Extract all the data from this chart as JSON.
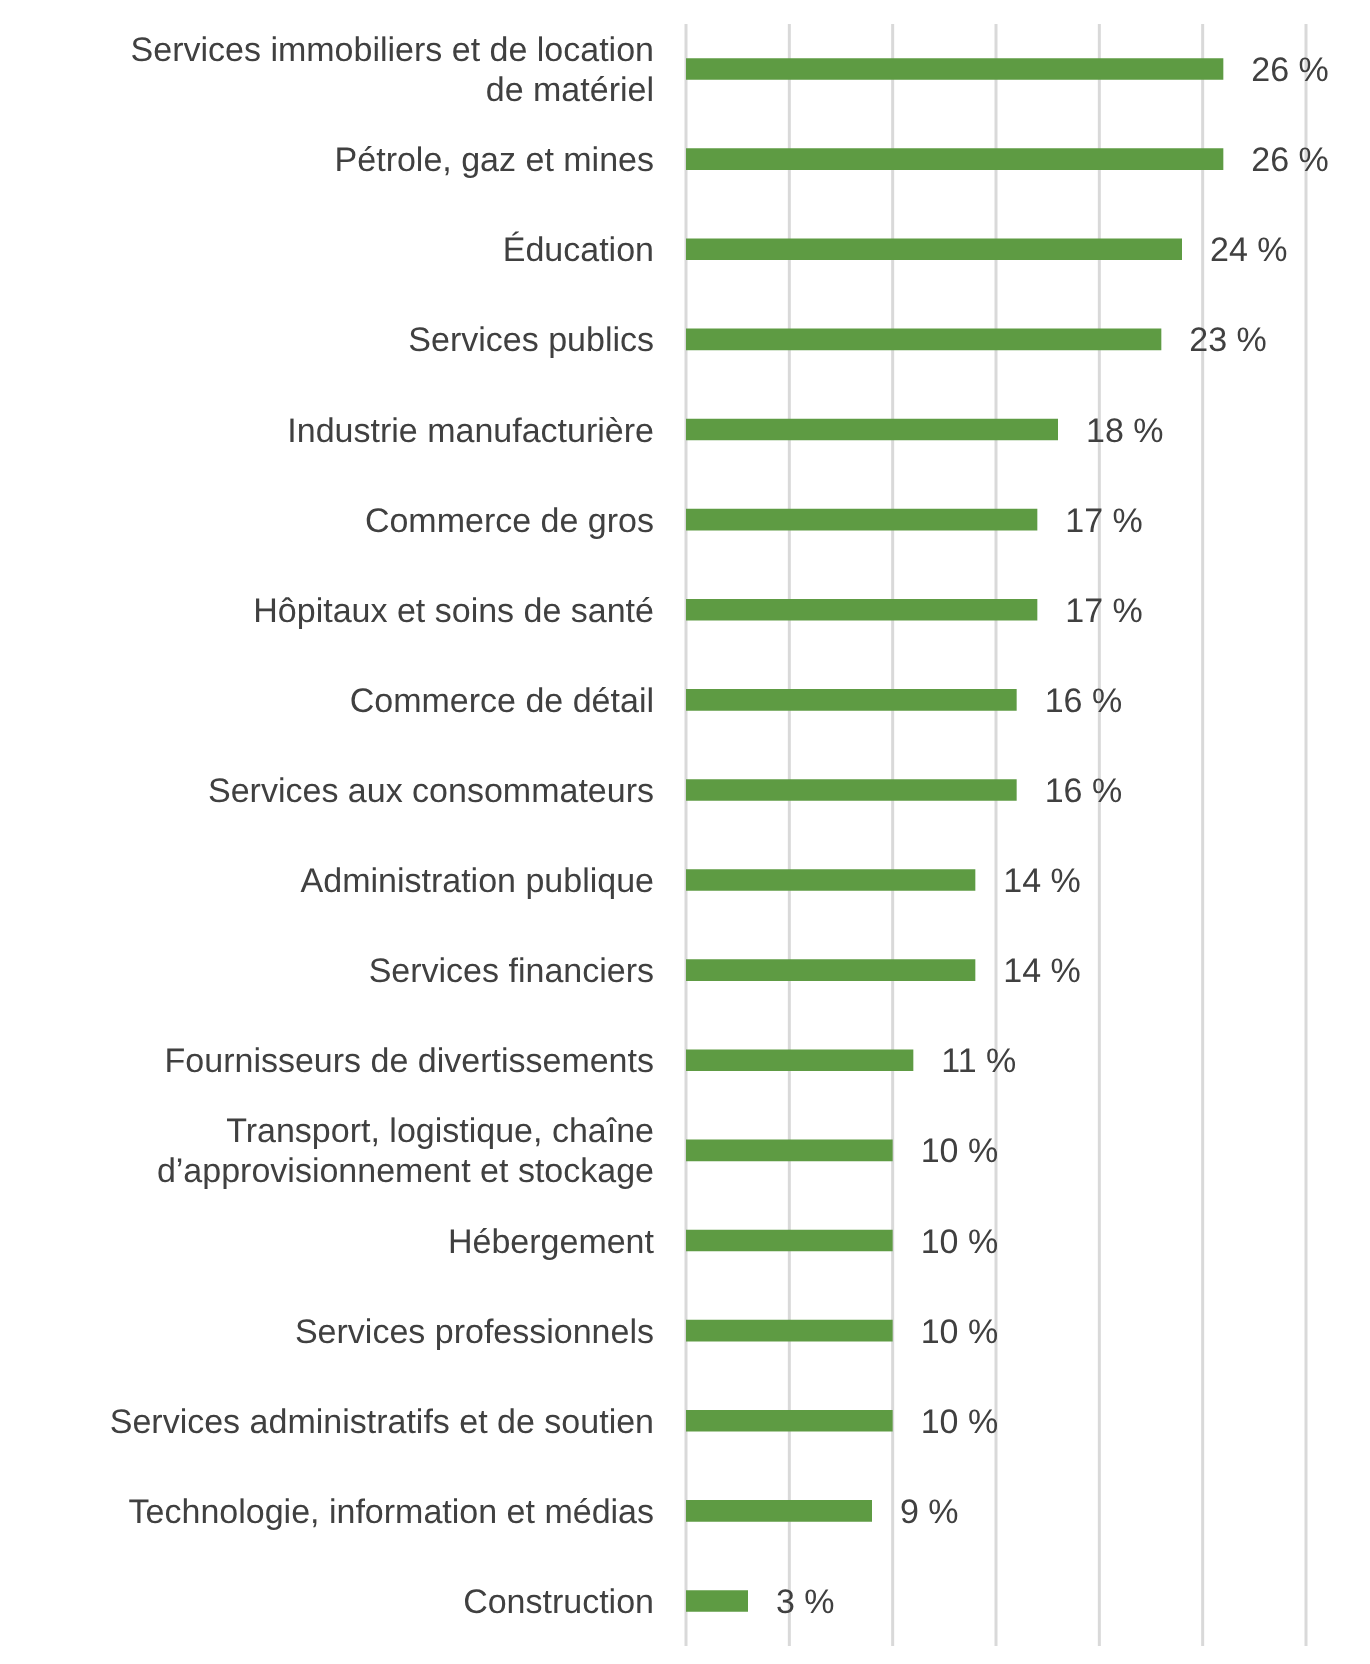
{
  "chart_data": {
    "type": "bar",
    "orientation": "horizontal",
    "categories": [
      "Services immobiliers et de location de matériel",
      "Pétrole, gaz et mines",
      "Éducation",
      "Services publics",
      "Industrie manufacturière",
      "Commerce de gros",
      "Hôpitaux et soins de santé",
      "Commerce de détail",
      "Services aux consommateurs",
      "Administration publique",
      "Services financiers",
      "Fournisseurs de divertissements",
      "Transport, logistique, chaîne d’approvisionnement et stockage",
      "Hébergement",
      "Services professionnels",
      "Services administratifs et de soutien",
      "Technologie, information et médias",
      "Construction"
    ],
    "values": [
      26,
      26,
      24,
      23,
      18,
      17,
      17,
      16,
      16,
      14,
      14,
      11,
      10,
      10,
      10,
      10,
      9,
      3
    ],
    "value_labels": [
      "26 %",
      "26 %",
      "24 %",
      "23 %",
      "18 %",
      "17 %",
      "17 %",
      "16 %",
      "16 %",
      "14 %",
      "14 %",
      "11 %",
      "10 %",
      "10 %",
      "10 %",
      "10 %",
      "9 %",
      "3 %"
    ],
    "color": "#5e9b43",
    "xlim": [
      0,
      30
    ],
    "grid": "x",
    "tick_labels": "y",
    "legend": false
  }
}
